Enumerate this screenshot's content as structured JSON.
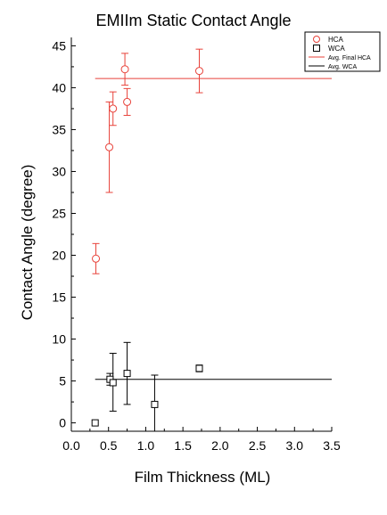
{
  "chart_data": {
    "type": "scatter",
    "title": "EMIIm Static Contact Angle",
    "xlabel": "Film Thickness (ML)",
    "ylabel": "Contact Angle (degree)",
    "xlim": [
      0.0,
      3.5
    ],
    "ylim": [
      -1,
      46
    ],
    "x_ticks": [
      "0.0",
      "0.5",
      "1.0",
      "1.5",
      "2.0",
      "2.5",
      "3.0",
      "3.5"
    ],
    "y_ticks": [
      "0",
      "5",
      "10",
      "15",
      "20",
      "25",
      "30",
      "35",
      "40",
      "45"
    ],
    "grid": false,
    "legend_position": "top-right",
    "legend": [
      {
        "label": "HCA",
        "kind": "circle",
        "color": "#e8423a"
      },
      {
        "label": "WCA",
        "kind": "square",
        "color": "#000000"
      },
      {
        "label": "Avg. Final HCA",
        "kind": "line",
        "color": "#e8423a"
      },
      {
        "label": "Avg. WCA",
        "kind": "line",
        "color": "#000000"
      }
    ],
    "series": [
      {
        "name": "HCA",
        "marker": "circle",
        "color": "#e8423a",
        "points": [
          {
            "x": 0.33,
            "y": 19.6,
            "err_low": 17.8,
            "err_high": 21.4
          },
          {
            "x": 0.51,
            "y": 32.9,
            "err_low": 27.5,
            "err_high": 38.3
          },
          {
            "x": 0.56,
            "y": 37.5,
            "err_low": 35.5,
            "err_high": 39.5
          },
          {
            "x": 0.72,
            "y": 42.2,
            "err_low": 40.3,
            "err_high": 44.1
          },
          {
            "x": 0.75,
            "y": 38.3,
            "err_low": 36.7,
            "err_high": 39.9
          },
          {
            "x": 1.72,
            "y": 42.0,
            "err_low": 39.4,
            "err_high": 44.6
          }
        ]
      },
      {
        "name": "WCA",
        "marker": "square",
        "color": "#000000",
        "points": [
          {
            "x": 0.32,
            "y": 0.0
          },
          {
            "x": 0.52,
            "y": 5.2,
            "err_low": 4.5,
            "err_high": 5.9
          },
          {
            "x": 0.56,
            "y": 4.8,
            "err_low": 1.4,
            "err_high": 8.3
          },
          {
            "x": 0.75,
            "y": 5.9,
            "err_low": 2.2,
            "err_high": 9.6
          },
          {
            "x": 1.12,
            "y": 2.2,
            "err_low": -1.0,
            "err_high": 5.7
          },
          {
            "x": 1.72,
            "y": 6.5,
            "err_low": 6.1,
            "err_high": 6.9
          }
        ]
      }
    ],
    "reference_lines": [
      {
        "name": "Avg. Final HCA",
        "y": 41.1,
        "x_range": [
          0.32,
          3.5
        ],
        "color": "#e8423a"
      },
      {
        "name": "Avg. WCA",
        "y": 5.2,
        "x_range": [
          0.32,
          3.5
        ],
        "color": "#000000"
      }
    ]
  }
}
